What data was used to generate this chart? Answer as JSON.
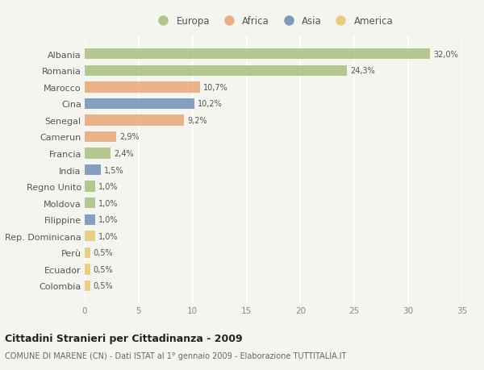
{
  "countries": [
    "Albania",
    "Romania",
    "Marocco",
    "Cina",
    "Senegal",
    "Camerun",
    "Francia",
    "India",
    "Regno Unito",
    "Moldova",
    "Filippine",
    "Rep. Dominicana",
    "Perù",
    "Ecuador",
    "Colombia"
  ],
  "values": [
    32.0,
    24.3,
    10.7,
    10.2,
    9.2,
    2.9,
    2.4,
    1.5,
    1.0,
    1.0,
    1.0,
    1.0,
    0.5,
    0.5,
    0.5
  ],
  "labels": [
    "32,0%",
    "24,3%",
    "10,7%",
    "10,2%",
    "9,2%",
    "2,9%",
    "2,4%",
    "1,5%",
    "1,0%",
    "1,0%",
    "1,0%",
    "1,0%",
    "0,5%",
    "0,5%",
    "0,5%"
  ],
  "colors": [
    "#a8c080",
    "#a8c080",
    "#e8a878",
    "#7090b8",
    "#e8a878",
    "#e8a878",
    "#a8c080",
    "#7090b8",
    "#a8c080",
    "#a8c080",
    "#7090b8",
    "#e8c870",
    "#e8c870",
    "#e8c870",
    "#e8c870"
  ],
  "legend_labels": [
    "Europa",
    "Africa",
    "Asia",
    "America"
  ],
  "legend_colors": [
    "#a8c080",
    "#e8a878",
    "#7090b8",
    "#e8c870"
  ],
  "title": "Cittadini Stranieri per Cittadinanza - 2009",
  "subtitle": "COMUNE DI MARENE (CN) - Dati ISTAT al 1° gennaio 2009 - Elaborazione TUTTITALIA.IT",
  "xlim": [
    0,
    35
  ],
  "xticks": [
    0,
    5,
    10,
    15,
    20,
    25,
    30,
    35
  ],
  "background_color": "#f5f5f0",
  "grid_color": "#ffffff",
  "bar_height": 0.65
}
